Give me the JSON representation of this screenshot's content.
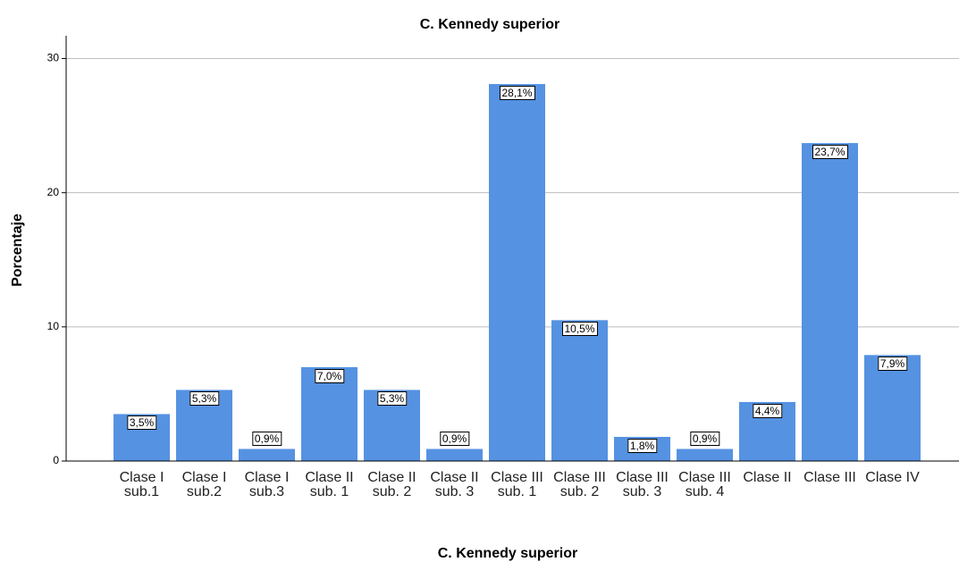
{
  "chart_data": {
    "type": "bar",
    "title": "C. Kennedy superior",
    "x_label": "C. Kennedy superior",
    "y_label": "Porcentaje",
    "categories": [
      "Clase I sub.1",
      "Clase I sub.2",
      "Clase I sub.3",
      "Clase II sub. 1",
      "Clase II sub. 2",
      "Clase II sub. 3",
      "Clase III sub. 1",
      "Clase III sub. 2",
      "Clase III sub. 3",
      "Clase III sub. 4",
      "Clase II",
      "Clase III",
      "Clase IV"
    ],
    "values": [
      3.5,
      5.3,
      0.9,
      7.0,
      5.3,
      0.9,
      28.1,
      10.5,
      1.8,
      0.9,
      4.4,
      23.7,
      7.9
    ],
    "value_labels": [
      "3,5%",
      "5,3%",
      "0,9%",
      "7,0%",
      "5,3%",
      "0,9%",
      "28,1%",
      "10,5%",
      "1,8%",
      "0,9%",
      "4,4%",
      "23,7%",
      "7,9%"
    ],
    "color": "#5592e2",
    "ylim": [
      0,
      31.7
    ],
    "yticks": [
      0,
      10,
      20,
      30
    ],
    "grid": true
  }
}
